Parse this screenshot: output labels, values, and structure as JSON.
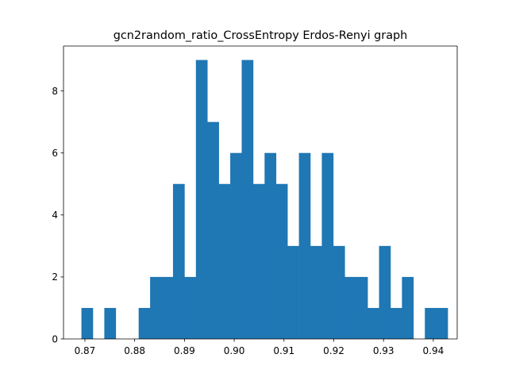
{
  "chart_data": {
    "type": "bar",
    "title": "gcn2random_ratio_CrossEntropy Erdos-Renyi graph",
    "xlabel": "",
    "ylabel": "",
    "bar_color": "#1f77b4",
    "bin_start": 0.8693,
    "bin_width": 0.0023,
    "xlim": [
      0.8657,
      0.9448
    ],
    "ylim": [
      0,
      9.45
    ],
    "x_ticks": [
      0.87,
      0.88,
      0.89,
      0.9,
      0.91,
      0.92,
      0.93,
      0.94
    ],
    "x_tick_labels": [
      "0.87",
      "0.88",
      "0.89",
      "0.90",
      "0.91",
      "0.92",
      "0.93",
      "0.94"
    ],
    "y_ticks": [
      0,
      2,
      4,
      6,
      8
    ],
    "y_tick_labels": [
      "0",
      "2",
      "4",
      "6",
      "8"
    ],
    "values": [
      1,
      0,
      1,
      0,
      0,
      1,
      2,
      2,
      5,
      2,
      9,
      7,
      5,
      6,
      9,
      5,
      6,
      5,
      3,
      6,
      3,
      6,
      3,
      2,
      2,
      1,
      3,
      1,
      2,
      0,
      1,
      1
    ],
    "grid": false
  }
}
